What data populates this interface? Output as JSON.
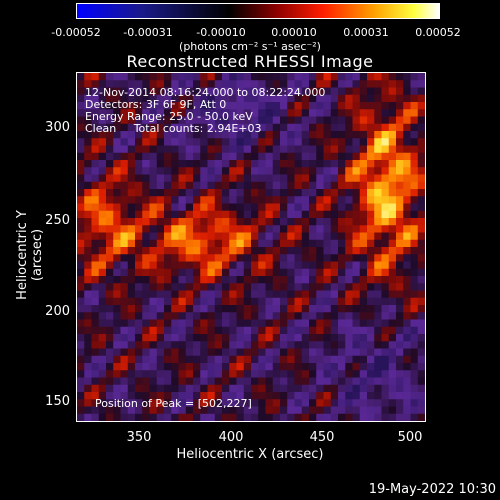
{
  "colorbar": {
    "ticks": [
      "-0.00052",
      "-0.00031",
      "-0.00010",
      "0.00010",
      "0.00031",
      "0.00052"
    ],
    "units": "(photons cm⁻² s⁻¹ asec⁻²)",
    "colors": [
      "#0000ff",
      "#000000",
      "#800000",
      "#ff0000",
      "#ffa500",
      "#ffff00",
      "#ffffff"
    ]
  },
  "title": "Reconstructed RHESSI Image",
  "annotations": {
    "time_range": "12-Nov-2014 08:16:24.000 to 08:22:24.000",
    "detectors": "Detectors: 3F 6F 9F, Att 0",
    "energy_range": "Energy Range: 25.0 - 50.0 keV",
    "clean_counts": "Clean     Total counts: 2.94E+03",
    "peak_position": "Position of Peak = [502,227]"
  },
  "axes": {
    "xlabel": "Heliocentric X (arcsec)",
    "ylabel": "Heliocentric Y (arcsec)",
    "xticks": [
      "350",
      "400",
      "450",
      "500"
    ],
    "yticks": [
      "300",
      "250",
      "200",
      "150"
    ]
  },
  "timestamp": "19-May-2022 10:30",
  "chart_data": {
    "type": "heatmap",
    "title": "Reconstructed RHESSI Image",
    "xlabel": "Heliocentric X (arcsec)",
    "ylabel": "Heliocentric Y (arcsec)",
    "xlim": [
      318,
      508
    ],
    "ylim": [
      135,
      325
    ],
    "colorbar_range": [
      -0.00052,
      0.00052
    ],
    "colorbar_ticks": [
      -0.00052,
      -0.00031,
      -0.0001,
      0.0001,
      0.00031,
      0.00052
    ],
    "peak": [
      502,
      227
    ]
  }
}
